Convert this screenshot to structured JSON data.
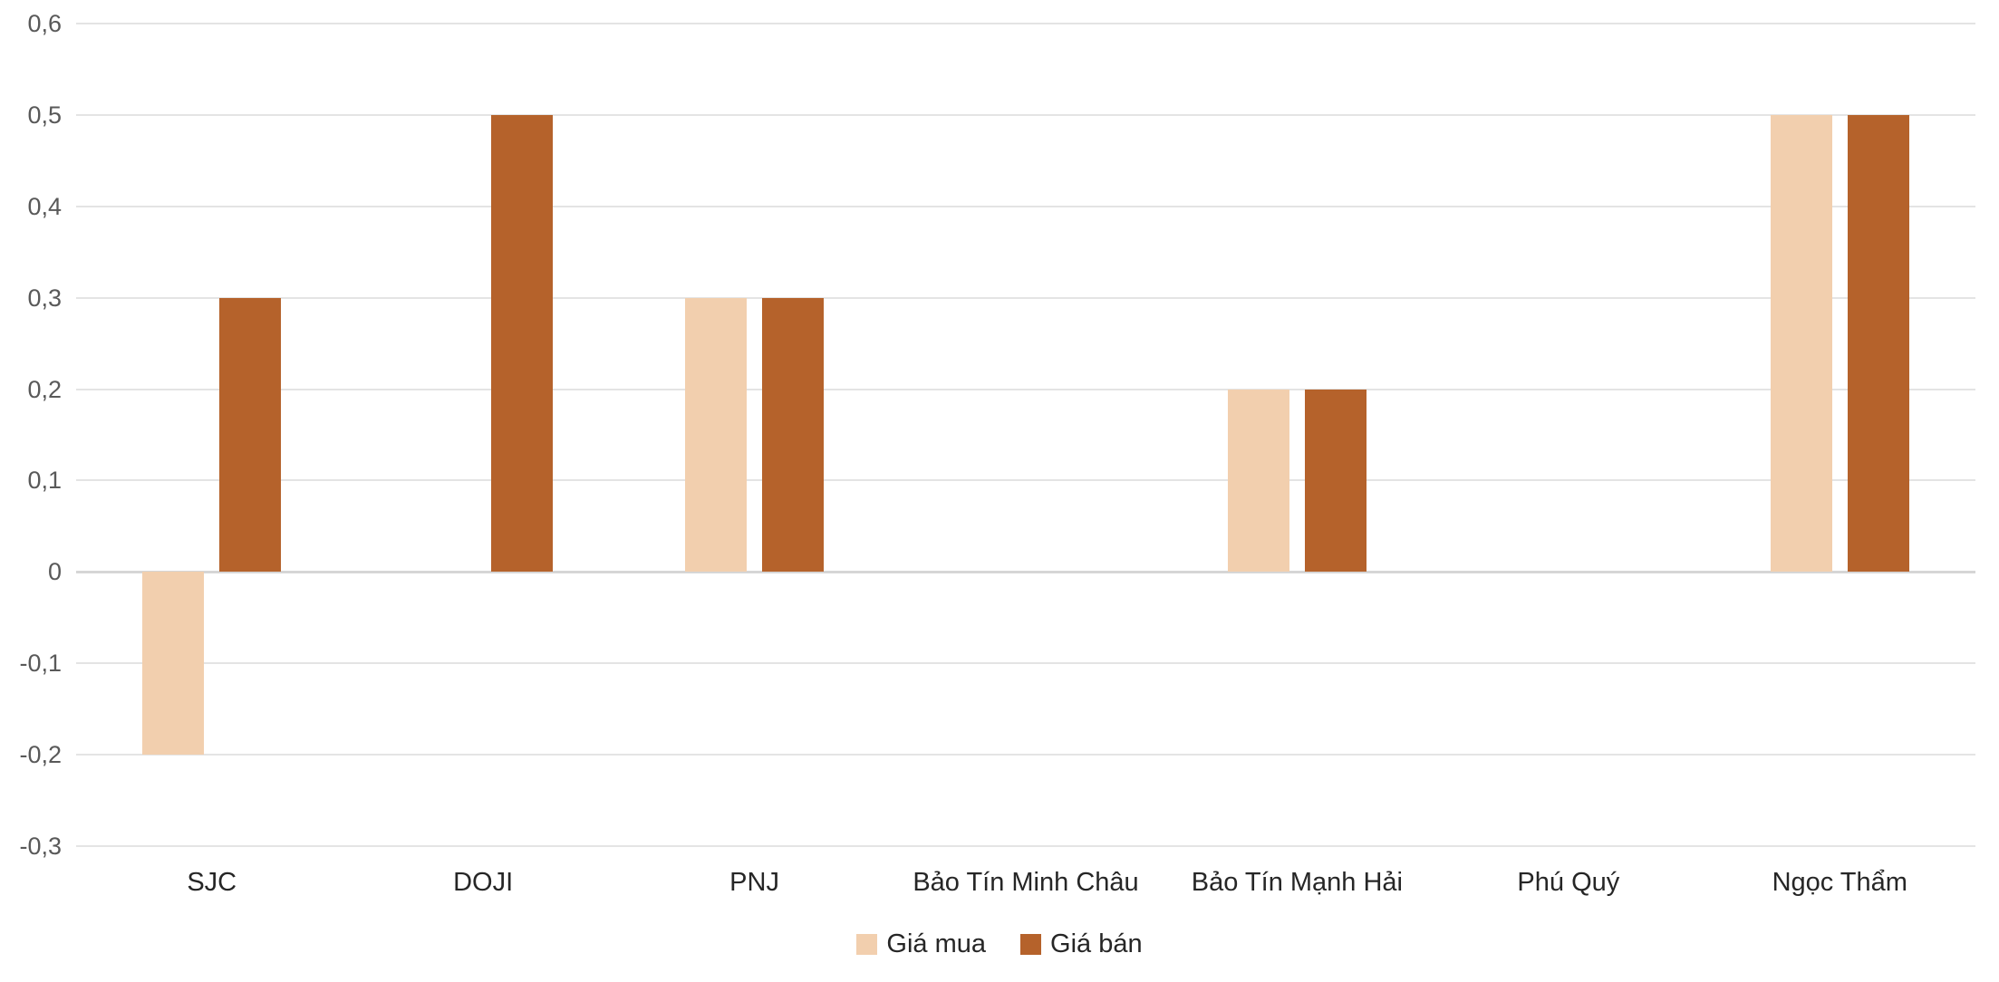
{
  "chart_data": {
    "type": "bar",
    "title": "",
    "categories": [
      "SJC",
      "DOJI",
      "PNJ",
      "Bảo Tín Minh Châu",
      "Bảo Tín Mạnh Hải",
      "Phú Quý",
      "Ngọc Thẩm"
    ],
    "series": [
      {
        "name": "Giá mua",
        "color": "#F2CFAE",
        "values": [
          -0.2,
          0,
          0.3,
          0,
          0.2,
          0,
          0.5
        ]
      },
      {
        "name": "Giá bán",
        "color": "#B5622B",
        "values": [
          0.3,
          0.5,
          0.3,
          0,
          0.2,
          0,
          0.5
        ]
      }
    ],
    "ylim": [
      -0.3,
      0.6
    ],
    "y_ticks": [
      {
        "value": 0.6,
        "label": "0,6"
      },
      {
        "value": 0.5,
        "label": "0,5"
      },
      {
        "value": 0.4,
        "label": "0,4"
      },
      {
        "value": 0.3,
        "label": "0,3"
      },
      {
        "value": 0.2,
        "label": "0,2"
      },
      {
        "value": 0.1,
        "label": "0,1"
      },
      {
        "value": 0,
        "label": "0"
      },
      {
        "value": -0.1,
        "label": "-0,1"
      },
      {
        "value": -0.2,
        "label": "-0,2"
      },
      {
        "value": -0.3,
        "label": "-0,3"
      }
    ],
    "grid": true,
    "legend_position": "bottom",
    "colors": {
      "gridline": "#E4E4E4",
      "zero_line": "#D6D6D6",
      "y_tick_text": "#595959",
      "category_text": "#262626",
      "legend_text": "#262626",
      "background": "#FFFFFF"
    }
  }
}
